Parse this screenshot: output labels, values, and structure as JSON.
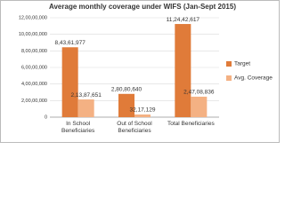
{
  "chart_data": {
    "type": "bar",
    "title": "Average monthly coverage under WIFS (Jan-Sept 2015)",
    "categories": [
      "In School Beneficiaries",
      "Out of School Beneficiaries",
      "Total Beneficiaries"
    ],
    "series": [
      {
        "name": "Target",
        "color": "#e07b39",
        "values": [
          84361977,
          28080640,
          112442617
        ],
        "value_labels": [
          "8,43,61,977",
          "2,80,80,640",
          "11,24,42,617"
        ]
      },
      {
        "name": "Avg. Coverage",
        "color": "#f4b183",
        "values": [
          21387651,
          3217129,
          24708836
        ],
        "value_labels": [
          "2,13,87,651",
          "32,17,129",
          "2,47,08,836"
        ]
      }
    ],
    "ylim": [
      0,
      120000000
    ],
    "yticks": [
      0,
      {
        "value": 20000000,
        "label": "2,00,00,000"
      },
      {
        "value": 40000000,
        "label": "4,00,00,000"
      },
      {
        "value": 60000000,
        "label": "6,00,00,000"
      },
      {
        "value": 80000000,
        "label": "8,00,00,000"
      },
      {
        "value": 100000000,
        "label": "10,00,00,000"
      },
      {
        "value": 120000000,
        "label": "12,00,00,000"
      }
    ],
    "grid": true,
    "legend": "right"
  }
}
